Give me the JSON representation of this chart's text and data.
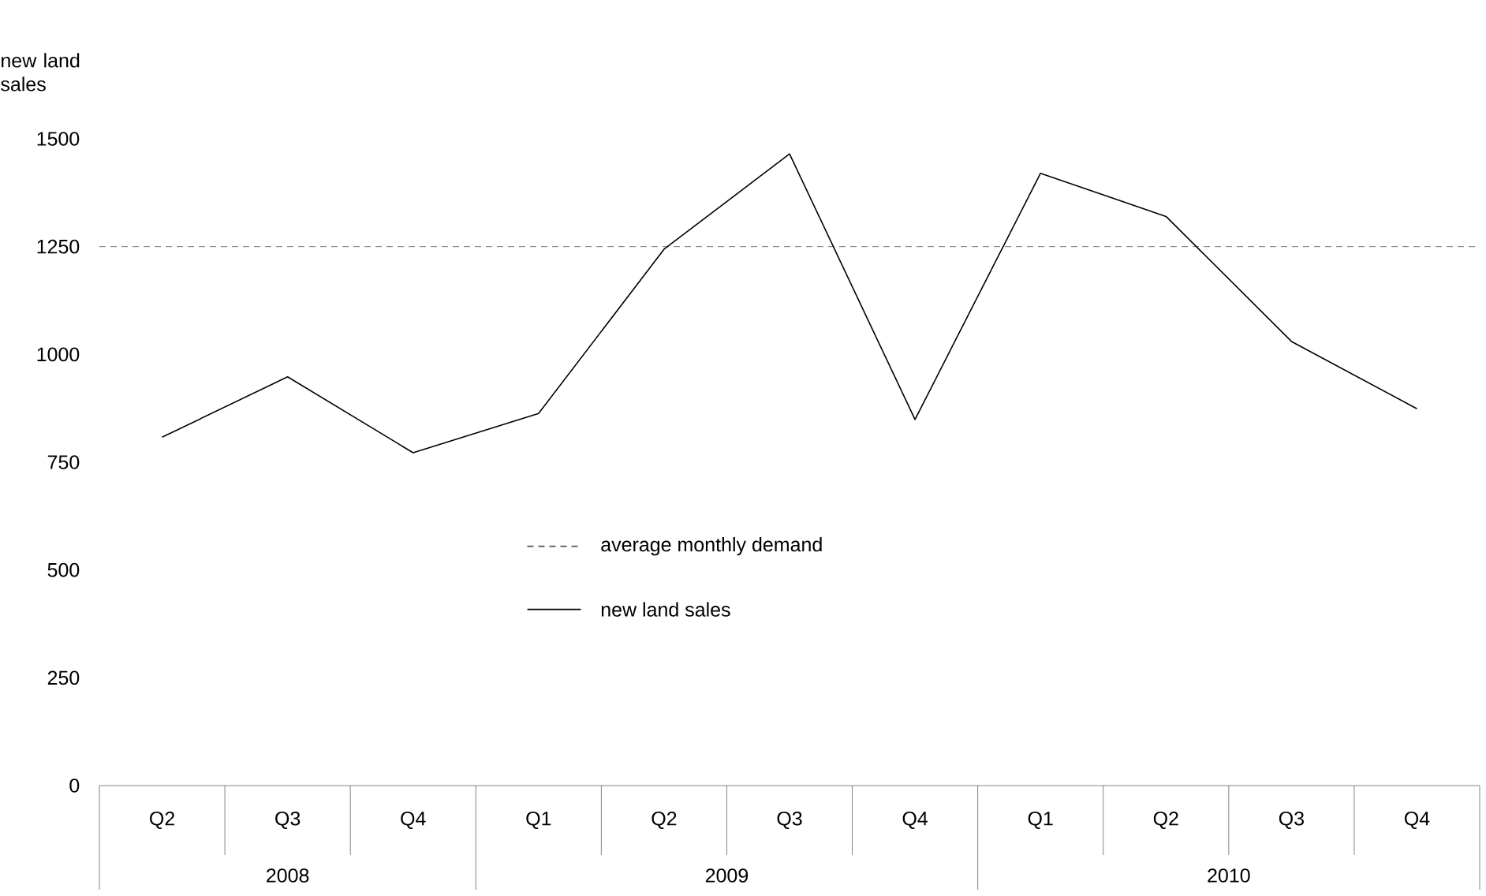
{
  "chart_data": {
    "type": "line",
    "ylabel": "new land sales",
    "categories": [
      "Q2",
      "Q3",
      "Q4",
      "Q1",
      "Q2",
      "Q3",
      "Q4",
      "Q1",
      "Q2",
      "Q3",
      "Q4"
    ],
    "series": [
      {
        "name": "new land sales",
        "color": "#000000",
        "values": [
          808,
          948,
          772,
          863,
          1244,
          1465,
          849,
          1420,
          1320,
          1030,
          874
        ]
      }
    ],
    "ref_lines": [
      {
        "axis": "y",
        "value": 1250,
        "label": "average monthly demand",
        "color": "#555555",
        "line_style": "dashed"
      }
    ],
    "annotations": [
      "2008",
      "2009",
      "2010"
    ],
    "ylim": [
      0,
      1500
    ],
    "yticks": [
      0,
      250,
      500,
      750,
      1000,
      1250,
      1500
    ],
    "grid": false,
    "legend": "center left",
    "marker": "none",
    "line_style": "solid"
  }
}
